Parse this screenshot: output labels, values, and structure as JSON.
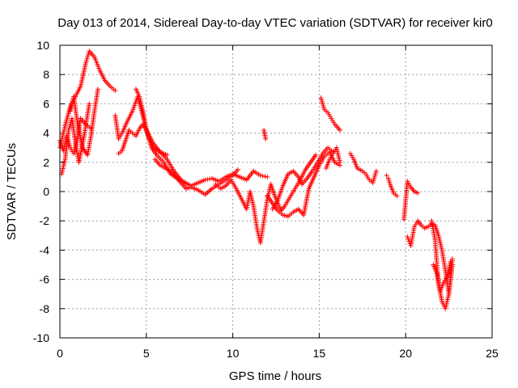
{
  "chart_data": {
    "type": "scatter",
    "title": "Day 013 of 2014, Sidereal Day-to-day VTEC variation (SDTVAR) for receiver kir0",
    "xlabel": "GPS time / hours",
    "ylabel": "SDTVAR / TECUs",
    "xlim": [
      0,
      25
    ],
    "ylim": [
      -10,
      10
    ],
    "xticks": [
      0,
      5,
      10,
      15,
      20,
      25
    ],
    "yticks": [
      -10,
      -8,
      -6,
      -4,
      -2,
      0,
      2,
      4,
      6,
      8,
      10
    ],
    "grid": true,
    "marker": "+",
    "color": "#ff0000",
    "series": [
      {
        "name": "kir0",
        "tracks": [
          {
            "x": [
              0.0,
              0.3,
              0.6,
              0.9,
              1.2,
              1.5,
              1.7,
              2.0,
              2.3,
              2.6,
              2.9,
              3.2
            ],
            "y": [
              3.0,
              4.5,
              5.8,
              6.5,
              7.2,
              8.8,
              9.6,
              9.2,
              8.3,
              7.6,
              7.2,
              6.9
            ]
          },
          {
            "x": [
              0.0,
              0.2,
              0.4,
              0.6,
              0.8,
              1.0,
              1.2,
              1.5,
              1.8
            ],
            "y": [
              3.5,
              2.8,
              3.8,
              3.0,
              2.6,
              3.5,
              5.0,
              4.6,
              4.3
            ]
          },
          {
            "x": [
              0.1,
              0.3,
              0.5,
              0.7,
              0.9,
              1.1,
              1.4,
              1.7
            ],
            "y": [
              1.2,
              2.2,
              4.2,
              5.0,
              3.3,
              2.0,
              3.8,
              6.0
            ]
          },
          {
            "x": [
              0.6,
              0.8,
              1.0,
              1.3,
              1.6,
              1.8,
              2.0,
              2.2
            ],
            "y": [
              5.5,
              6.5,
              4.8,
              3.0,
              2.5,
              3.8,
              5.5,
              7.0
            ]
          },
          {
            "x": [
              3.2,
              3.4,
              3.6,
              3.9,
              4.2,
              4.5,
              4.8,
              5.1,
              5.4,
              5.8,
              6.2
            ],
            "y": [
              5.2,
              3.6,
              4.0,
              4.8,
              5.5,
              6.5,
              5.2,
              3.8,
              3.0,
              2.7,
              2.5
            ]
          },
          {
            "x": [
              3.4,
              3.6,
              3.8,
              4.0,
              4.2,
              4.4,
              4.6,
              4.8,
              5.1,
              5.4,
              5.8,
              6.2,
              6.6,
              7.0,
              7.4
            ],
            "y": [
              2.6,
              2.8,
              3.5,
              4.2,
              4.0,
              3.8,
              4.3,
              4.6,
              4.0,
              3.3,
              2.7,
              2.2,
              1.4,
              0.8,
              0.5
            ]
          },
          {
            "x": [
              4.4,
              4.6,
              4.8,
              5.0,
              5.3,
              5.6,
              6.0,
              6.4,
              6.8,
              7.2,
              7.6,
              8.0,
              8.4,
              8.8,
              9.2,
              9.6,
              10.0,
              10.4,
              10.8,
              11.2,
              11.6,
              12.0
            ],
            "y": [
              7.0,
              6.5,
              5.5,
              4.2,
              3.0,
              2.5,
              2.0,
              1.2,
              0.9,
              0.6,
              0.4,
              0.6,
              0.8,
              0.9,
              0.7,
              1.0,
              1.2,
              1.0,
              0.8,
              1.4,
              1.1,
              1.0
            ]
          },
          {
            "x": [
              5.5,
              5.8,
              6.1,
              6.4,
              6.7,
              7.0,
              7.3,
              7.6,
              8.0,
              8.4,
              8.8,
              9.2,
              9.6,
              10.0,
              10.3
            ],
            "y": [
              2.2,
              1.8,
              1.6,
              1.4,
              1.0,
              0.6,
              0.2,
              0.3,
              0.1,
              -0.2,
              0.2,
              0.5,
              0.8,
              1.1,
              1.5
            ]
          },
          {
            "x": [
              9.0,
              9.3,
              9.6,
              9.9,
              10.2,
              10.5,
              10.8,
              11.0,
              11.2,
              11.4,
              11.6,
              11.8,
              12.0,
              12.2,
              12.4,
              12.6,
              12.8,
              13.0,
              13.3,
              13.6,
              13.9,
              14.2,
              14.5,
              14.8
            ],
            "y": [
              0.5,
              0.2,
              0.4,
              0.8,
              0.2,
              -0.5,
              -1.2,
              0.0,
              -1.0,
              -2.5,
              -3.5,
              -2.0,
              -0.5,
              0.5,
              -0.2,
              -0.8,
              -1.3,
              -1.0,
              -0.4,
              0.2,
              0.8,
              1.5,
              2.0,
              2.5
            ]
          },
          {
            "x": [
              12.0,
              12.3,
              12.6,
              12.9,
              13.2,
              13.5,
              13.8,
              14.1,
              14.4,
              14.7,
              15.0,
              15.3,
              15.6,
              15.9,
              16.2
            ],
            "y": [
              -0.3,
              -0.8,
              -1.3,
              -1.6,
              -1.7,
              -1.4,
              -1.2,
              -1.6,
              0.2,
              1.0,
              1.8,
              2.4,
              2.7,
              2.0,
              1.8
            ]
          },
          {
            "x": [
              12.3,
              12.6,
              12.9,
              13.2,
              13.5,
              13.8,
              14.0,
              14.3,
              14.6,
              14.9,
              15.2,
              15.5,
              15.8
            ],
            "y": [
              -1.2,
              -0.6,
              0.4,
              1.2,
              1.4,
              1.0,
              0.5,
              0.9,
              1.4,
              2.0,
              2.6,
              3.0,
              2.7
            ]
          },
          {
            "x": [
              11.8,
              11.9
            ],
            "y": [
              4.2,
              3.6
            ]
          },
          {
            "x": [
              15.1,
              15.3,
              15.5,
              15.7,
              15.9,
              16.2
            ],
            "y": [
              6.4,
              5.6,
              5.4,
              5.0,
              4.6,
              4.2
            ]
          },
          {
            "x": [
              15.4,
              15.6,
              15.8,
              16.0,
              16.2
            ],
            "y": [
              1.6,
              2.2,
              2.6,
              3.0,
              2.0
            ]
          },
          {
            "x": [
              16.8,
              17.0,
              17.2,
              17.5,
              17.7,
              17.9,
              18.1,
              18.3
            ],
            "y": [
              2.6,
              2.2,
              1.6,
              1.4,
              1.2,
              0.8,
              0.6,
              1.4
            ]
          },
          {
            "x": [
              18.9,
              19.0,
              19.1,
              19.3,
              19.5
            ],
            "y": [
              1.1,
              0.9,
              0.5,
              -0.1,
              -0.3
            ]
          },
          {
            "x": [
              19.9,
              20.1,
              20.3,
              20.5,
              20.7
            ],
            "y": [
              -1.9,
              0.7,
              0.3,
              0.0,
              -0.1
            ]
          },
          {
            "x": [
              20.1,
              20.2,
              20.3,
              20.5,
              20.7,
              20.9,
              21.1,
              21.3,
              21.5,
              21.7,
              21.9,
              22.1,
              22.3,
              22.5,
              22.7
            ],
            "y": [
              -3.1,
              -3.4,
              -3.7,
              -2.4,
              -2.0,
              -2.3,
              -2.5,
              -2.4,
              -2.2,
              -2.3,
              -3.0,
              -4.0,
              -5.4,
              -7.0,
              -5.0
            ]
          },
          {
            "x": [
              21.5,
              21.7,
              21.9,
              22.1,
              22.3,
              22.5,
              22.7
            ],
            "y": [
              -2.0,
              -3.3,
              -6.3,
              -7.5,
              -8.0,
              -7.0,
              -4.6
            ]
          },
          {
            "x": [
              21.6,
              21.8,
              22.0,
              22.2,
              22.4,
              22.6
            ],
            "y": [
              -5.0,
              -5.6,
              -6.8,
              -6.2,
              -5.8,
              -4.8
            ]
          }
        ]
      }
    ]
  }
}
